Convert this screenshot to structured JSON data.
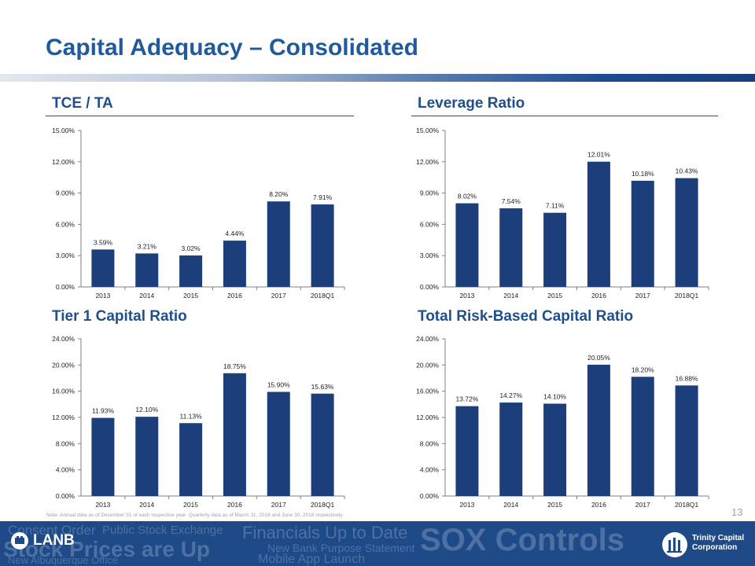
{
  "slide": {
    "title": "Capital Adequacy – Consolidated",
    "page_number": "13",
    "note": "Note: Annual data as of December 31 of each respective year. Quarterly data as of March 31, 2018 and June 30, 2018 respectively."
  },
  "colors": {
    "bar": "#1c3f7c",
    "title": "#1f5a9e",
    "heading": "#1f4f8c",
    "footer": "#1e4a88"
  },
  "footer": {
    "logo_left": "LANB",
    "logo_right_line1": "Trinity Capital",
    "logo_right_line2": "Corporation",
    "ghost_phrases": [
      "Consent Order",
      "Public Stock Exchange",
      "Financials Up to Date",
      "Stock Prices are Up",
      "New Bank Purpose Statement",
      "SOX Controls",
      "New Albuquerque Office",
      "Mobile App Launch"
    ]
  },
  "chart_data": [
    {
      "id": "tce",
      "type": "bar",
      "title": "TCE / TA",
      "categories": [
        "2013",
        "2014",
        "2015",
        "2016",
        "2017",
        "2018Q1"
      ],
      "values": [
        3.59,
        3.21,
        3.02,
        4.44,
        8.2,
        7.91
      ],
      "data_labels": [
        "3.59%",
        "3.21%",
        "3.02%",
        "4.44%",
        "8.20%",
        "7.91%"
      ],
      "yticks": [
        "0.00%",
        "3.00%",
        "6.00%",
        "9.00%",
        "12.00%",
        "15.00%"
      ],
      "ylim": [
        0,
        15
      ]
    },
    {
      "id": "leverage",
      "type": "bar",
      "title": "Leverage Ratio",
      "categories": [
        "2013",
        "2014",
        "2015",
        "2016",
        "2017",
        "2018Q1"
      ],
      "values": [
        8.02,
        7.54,
        7.11,
        12.01,
        10.18,
        10.43
      ],
      "data_labels": [
        "8.02%",
        "7.54%",
        "7.11%",
        "12.01%",
        "10.18%",
        "10.43%"
      ],
      "yticks": [
        "0.00%",
        "3.00%",
        "6.00%",
        "9.00%",
        "12.00%",
        "15.00%"
      ],
      "ylim": [
        0,
        15
      ]
    },
    {
      "id": "tier1",
      "type": "bar",
      "title": "Tier 1 Capital Ratio",
      "categories": [
        "2013",
        "2014",
        "2015",
        "2016",
        "2017",
        "2018Q1"
      ],
      "values": [
        11.93,
        12.1,
        11.13,
        18.75,
        15.9,
        15.63
      ],
      "data_labels": [
        "11.93%",
        "12.10%",
        "11.13%",
        "18.75%",
        "15.90%",
        "15.63%"
      ],
      "yticks": [
        "0.00%",
        "4.00%",
        "8.00%",
        "12.00%",
        "16.00%",
        "20.00%",
        "24.00%"
      ],
      "ylim": [
        0,
        24
      ]
    },
    {
      "id": "trbc",
      "type": "bar",
      "title": "Total Risk-Based Capital Ratio",
      "categories": [
        "2013",
        "2014",
        "2015",
        "2016",
        "2017",
        "2018Q1"
      ],
      "values": [
        13.72,
        14.27,
        14.1,
        20.05,
        18.2,
        16.88
      ],
      "data_labels": [
        "13.72%",
        "14.27%",
        "14.10%",
        "20.05%",
        "18.20%",
        "16.88%"
      ],
      "yticks": [
        "0.00%",
        "4.00%",
        "8.00%",
        "12.00%",
        "16.00%",
        "20.00%",
        "24.00%"
      ],
      "ylim": [
        0,
        24
      ]
    }
  ]
}
